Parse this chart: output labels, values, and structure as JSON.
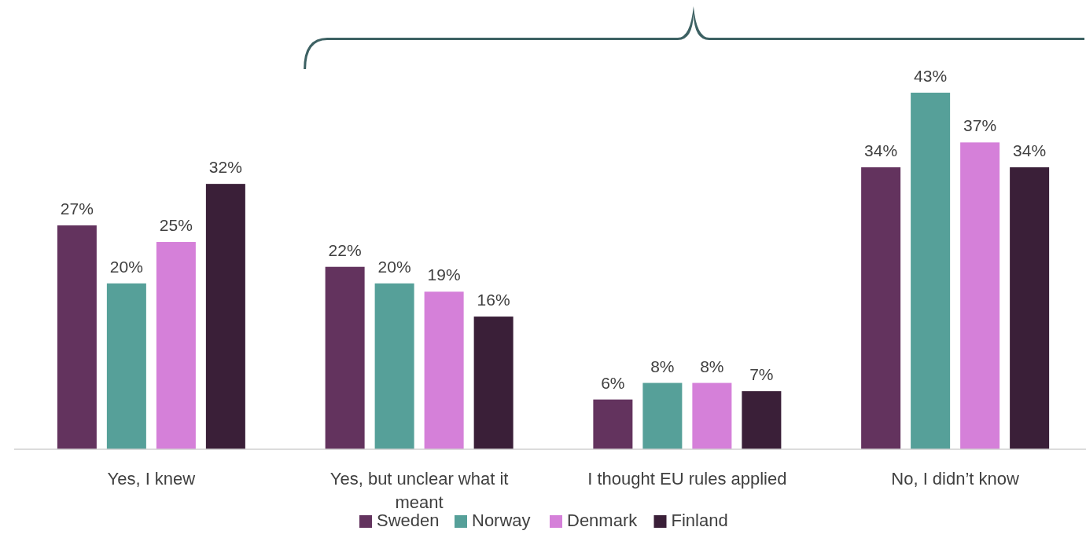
{
  "chart_data": {
    "type": "bar",
    "categories": [
      "Yes, I knew",
      "Yes, but unclear what it meant",
      "I thought EU rules applied",
      "No, I didn’t know"
    ],
    "series": [
      {
        "name": "Sweden",
        "color": "#63335e",
        "values": [
          27,
          22,
          6,
          34
        ],
        "value_labels": [
          "27%",
          "22%",
          "6%",
          "34%"
        ]
      },
      {
        "name": "Norway",
        "color": "#56a099",
        "values": [
          20,
          20,
          8,
          43
        ],
        "value_labels": [
          "20%",
          "20%",
          "8%",
          "43%"
        ]
      },
      {
        "name": "Denmark",
        "color": "#d580d9",
        "values": [
          25,
          19,
          8,
          37
        ],
        "value_labels": [
          "25%",
          "19%",
          "8%",
          "37%"
        ]
      },
      {
        "name": "Finland",
        "color": "#3a1f38",
        "values": [
          32,
          16,
          7,
          34
        ],
        "value_labels": [
          "32%",
          "16%",
          "7%",
          "34%"
        ]
      }
    ],
    "tick_labels": "x",
    "legend": "bottom"
  }
}
